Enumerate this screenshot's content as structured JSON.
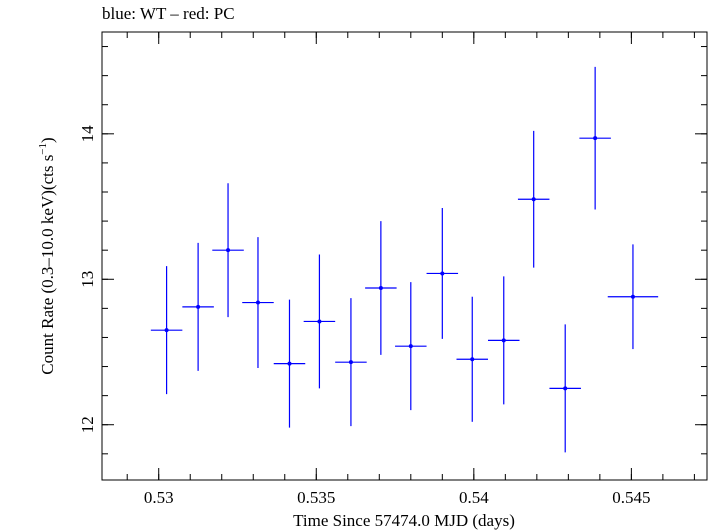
{
  "chart_data": {
    "type": "scatter",
    "title": "blue: WT – red: PC",
    "xlabel": "Time Since 57474.0 MJD (days)",
    "ylabel_main": "Count Rate (0.3–10.0 keV)(cts s",
    "ylabel_sup": "−1",
    "ylabel_end": ")",
    "xlim": [
      0.5282,
      0.5474
    ],
    "ylim": [
      11.62,
      14.7
    ],
    "x_ticks": [
      0.53,
      0.535,
      0.54,
      0.545
    ],
    "x_tick_labels": [
      "0.53",
      "0.535",
      "0.54",
      "0.545"
    ],
    "y_ticks": [
      12,
      13,
      14
    ],
    "y_tick_labels": [
      "12",
      "13",
      "14"
    ],
    "grid": false,
    "series": [
      {
        "color": "#0000ff",
        "points": [
          {
            "x": 0.53025,
            "xerr": 0.0005,
            "y": 12.65,
            "yerr": 0.44
          },
          {
            "x": 0.53125,
            "xerr": 0.0005,
            "y": 12.81,
            "yerr": 0.44
          },
          {
            "x": 0.5322,
            "xerr": 0.0005,
            "y": 13.2,
            "yerr": 0.46
          },
          {
            "x": 0.53315,
            "xerr": 0.0005,
            "y": 12.84,
            "yerr": 0.45
          },
          {
            "x": 0.53415,
            "xerr": 0.0005,
            "y": 12.42,
            "yerr": 0.44
          },
          {
            "x": 0.5351,
            "xerr": 0.0005,
            "y": 12.71,
            "yerr": 0.46
          },
          {
            "x": 0.5361,
            "xerr": 0.0005,
            "y": 12.43,
            "yerr": 0.44
          },
          {
            "x": 0.53705,
            "xerr": 0.0005,
            "y": 12.94,
            "yerr": 0.46
          },
          {
            "x": 0.538,
            "xerr": 0.0005,
            "y": 12.54,
            "yerr": 0.44
          },
          {
            "x": 0.539,
            "xerr": 0.0005,
            "y": 13.04,
            "yerr": 0.45
          },
          {
            "x": 0.53995,
            "xerr": 0.0005,
            "y": 12.45,
            "yerr": 0.43
          },
          {
            "x": 0.54095,
            "xerr": 0.0005,
            "y": 12.58,
            "yerr": 0.44
          },
          {
            "x": 0.5419,
            "xerr": 0.0005,
            "y": 13.55,
            "yerr": 0.47
          },
          {
            "x": 0.5429,
            "xerr": 0.0005,
            "y": 12.25,
            "yerr": 0.44
          },
          {
            "x": 0.54385,
            "xerr": 0.0005,
            "y": 13.97,
            "yerr": 0.49
          },
          {
            "x": 0.54505,
            "xerr": 0.0008,
            "y": 12.88,
            "yerr": 0.36
          }
        ]
      }
    ]
  }
}
